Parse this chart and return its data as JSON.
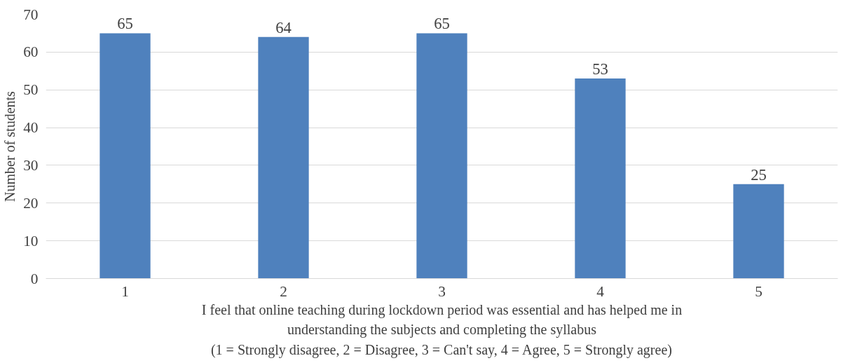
{
  "chart_data": {
    "type": "bar",
    "categories": [
      "1",
      "2",
      "3",
      "4",
      "5"
    ],
    "values": [
      65,
      64,
      65,
      53,
      25
    ],
    "color": "#4f81bd",
    "ylim": [
      0,
      70
    ],
    "yticks": [
      0,
      10,
      20,
      30,
      40,
      50,
      60,
      70
    ],
    "grid": "y",
    "data_labels": true,
    "ylabel": "Number of students",
    "xlabel": "I feel that online teaching during lockdown period was essential and has helped me in\nunderstanding the subjects and completing the syllabus\n(1 = Strongly disagree, 2 = Disagree, 3 = Can't say, 4 = Agree, 5 = Strongly agree)"
  }
}
